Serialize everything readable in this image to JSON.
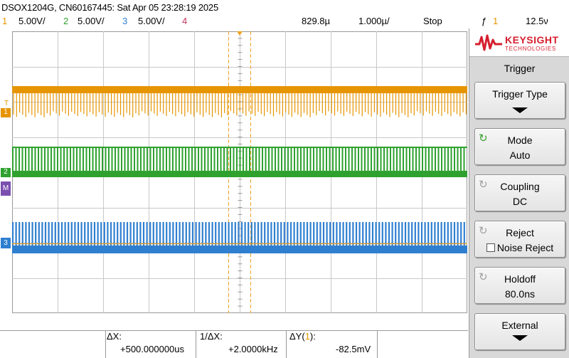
{
  "header": {
    "title": "DSOX1204G, CN60167445: Sat Apr 05 23:28:19 2025",
    "channels": [
      {
        "num": "1",
        "scale": "5.00V/",
        "color": "#e69500"
      },
      {
        "num": "2",
        "scale": "5.00V/",
        "color": "#2fa12f"
      },
      {
        "num": "3",
        "scale": "5.00V/",
        "color": "#2f7fd0"
      },
      {
        "num": "4",
        "color": "#c8365a"
      }
    ],
    "delay": "829.8µ",
    "timebase": "1.000µ/",
    "run_state": "Stop",
    "trigger_icon": "ƒ",
    "trigger_source": "1",
    "trigger_level": "12.5ν"
  },
  "markers": {
    "ch1": "1",
    "ch2": "2",
    "ch3": "3",
    "math": "M",
    "trig": "T"
  },
  "measurements": {
    "dx_label": "ΔX:",
    "dx_value": "+500.000000us",
    "inv_dx_label": "1/ΔX:",
    "inv_dx_value": "+2.0000kHz",
    "dy_label_prefix": "ΔY(",
    "dy_label_src": "1",
    "dy_label_suffix": "):",
    "dy_value": "-82.5mV"
  },
  "brand": {
    "name": "KEYSIGHT",
    "sub": "TECHNOLOGIES",
    "color": "#d51f2e"
  },
  "softkeys": {
    "menu_title": "Trigger",
    "trigger_type": "Trigger Type",
    "mode_label": "Mode",
    "mode_value": "Auto",
    "coupling_label": "Coupling",
    "coupling_value": "DC",
    "reject_label": "Reject",
    "noise_reject_label": "Noise Reject",
    "holdoff_label": "Holdoff",
    "holdoff_value": "80.0ns",
    "external_label": "External"
  },
  "colors": {
    "ch1": "#e69500",
    "ch2": "#2fa12f",
    "ch3": "#2f7fd0",
    "ch4": "#c8365a",
    "grid": "#c8c8c8"
  }
}
